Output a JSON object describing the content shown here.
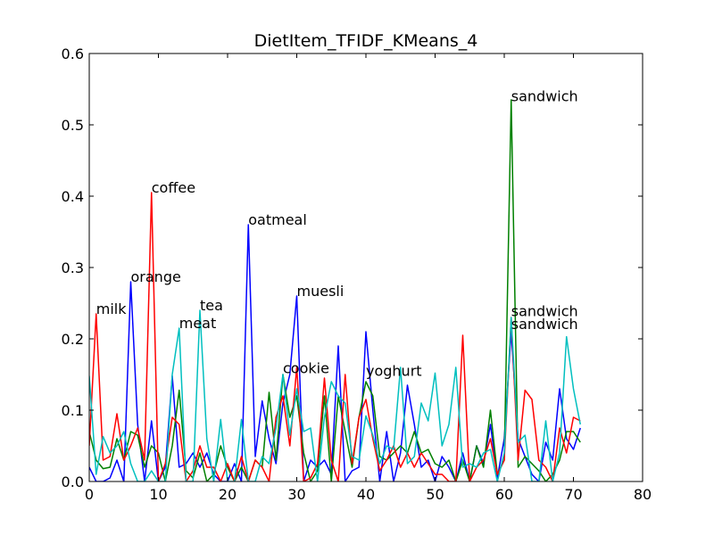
{
  "chart_data": {
    "type": "line",
    "title": "DietItem_TFIDF_KMeans_4",
    "xlabel": "",
    "ylabel": "",
    "xlim": [
      0,
      80
    ],
    "ylim": [
      0,
      0.6
    ],
    "xticks": [
      0,
      10,
      20,
      30,
      40,
      50,
      60,
      70,
      80
    ],
    "xtick_labels": [
      "0",
      "10",
      "20",
      "30",
      "40",
      "50",
      "60",
      "70",
      "80"
    ],
    "yticks": [
      0.0,
      0.1,
      0.2,
      0.3,
      0.4,
      0.5,
      0.6
    ],
    "ytick_labels": [
      "0.0",
      "0.1",
      "0.2",
      "0.3",
      "0.4",
      "0.5",
      "0.6"
    ],
    "grid": false,
    "x": [
      0,
      1,
      2,
      3,
      4,
      5,
      6,
      7,
      8,
      9,
      10,
      11,
      12,
      13,
      14,
      15,
      16,
      17,
      18,
      19,
      20,
      21,
      22,
      23,
      24,
      25,
      26,
      27,
      28,
      29,
      30,
      31,
      32,
      33,
      34,
      35,
      36,
      37,
      38,
      39,
      40,
      41,
      42,
      43,
      44,
      45,
      46,
      47,
      48,
      49,
      50,
      51,
      52,
      53,
      54,
      55,
      56,
      57,
      58,
      59,
      60,
      61,
      62,
      63,
      64,
      65,
      66,
      67,
      68,
      69,
      70,
      71
    ],
    "series": [
      {
        "color": "#0000ff",
        "values": [
          0.02,
          0.0,
          0.0,
          0.005,
          0.03,
          0.0,
          0.28,
          0.08,
          0.0,
          0.085,
          0.0,
          0.02,
          0.148,
          0.02,
          0.025,
          0.04,
          0.02,
          0.04,
          0.01,
          0.0,
          0.0,
          0.025,
          0.0,
          0.36,
          0.035,
          0.113,
          0.06,
          0.025,
          0.11,
          0.15,
          0.26,
          0.0,
          0.03,
          0.02,
          0.03,
          0.01,
          0.19,
          0.0,
          0.015,
          0.02,
          0.21,
          0.1,
          0.0,
          0.07,
          0.0,
          0.04,
          0.135,
          0.08,
          0.02,
          0.03,
          0.0,
          0.035,
          0.02,
          0.0,
          0.04,
          0.0,
          0.05,
          0.025,
          0.08,
          0.005,
          0.06,
          0.21,
          0.06,
          0.035,
          0.01,
          0.0,
          0.055,
          0.03,
          0.13,
          0.06,
          0.045,
          0.075
        ]
      },
      {
        "color": "#008000",
        "values": [
          0.07,
          0.03,
          0.018,
          0.02,
          0.06,
          0.03,
          0.07,
          0.065,
          0.02,
          0.05,
          0.04,
          0.0,
          0.05,
          0.128,
          0.015,
          0.005,
          0.04,
          0.0,
          0.01,
          0.05,
          0.02,
          0.0,
          0.02,
          0.0,
          0.03,
          0.02,
          0.125,
          0.03,
          0.15,
          0.09,
          0.12,
          0.04,
          0.0,
          0.015,
          0.12,
          0.0,
          0.12,
          0.07,
          0.02,
          0.09,
          0.14,
          0.12,
          0.035,
          0.03,
          0.04,
          0.05,
          0.04,
          0.07,
          0.04,
          0.045,
          0.025,
          0.02,
          0.03,
          0.0,
          0.03,
          0.0,
          0.05,
          0.02,
          0.1,
          0.01,
          0.03,
          0.535,
          0.02,
          0.035,
          0.025,
          0.015,
          0.0,
          0.01,
          0.03,
          0.07,
          0.07,
          0.055
        ]
      },
      {
        "color": "#ff0000",
        "values": [
          0.05,
          0.235,
          0.03,
          0.035,
          0.095,
          0.03,
          0.05,
          0.075,
          0.03,
          0.405,
          0.0,
          0.025,
          0.09,
          0.08,
          0.0,
          0.015,
          0.05,
          0.02,
          0.02,
          0.0,
          0.025,
          0.0,
          0.035,
          0.0,
          0.03,
          0.02,
          0.0,
          0.09,
          0.12,
          0.05,
          0.16,
          0.0,
          0.005,
          0.025,
          0.145,
          0.03,
          0.0,
          0.15,
          0.025,
          0.09,
          0.115,
          0.06,
          0.015,
          0.03,
          0.05,
          0.02,
          0.04,
          0.02,
          0.04,
          0.025,
          0.01,
          0.01,
          0.0,
          0.0,
          0.205,
          0.0,
          0.02,
          0.03,
          0.06,
          0.01,
          0.03,
          0.23,
          0.03,
          0.128,
          0.115,
          0.03,
          0.02,
          0.0,
          0.075,
          0.04,
          0.09,
          0.085
        ]
      },
      {
        "color": "#00bfbf",
        "values": [
          0.148,
          0.01,
          0.063,
          0.04,
          0.05,
          0.07,
          0.025,
          0.0,
          0.0,
          0.015,
          0.0,
          0.0,
          0.15,
          0.215,
          0.0,
          0.0,
          0.24,
          0.06,
          0.0,
          0.087,
          0.0,
          0.0,
          0.087,
          0.0,
          0.0,
          0.035,
          0.025,
          0.075,
          0.15,
          0.065,
          0.13,
          0.07,
          0.075,
          0.0,
          0.09,
          0.14,
          0.12,
          0.11,
          0.035,
          0.03,
          0.092,
          0.065,
          0.025,
          0.05,
          0.045,
          0.16,
          0.025,
          0.035,
          0.11,
          0.085,
          0.152,
          0.05,
          0.08,
          0.16,
          0.02,
          0.025,
          0.02,
          0.04,
          0.045,
          0.0,
          0.04,
          0.23,
          0.055,
          0.065,
          0.0,
          0.0,
          0.085,
          0.0,
          0.04,
          0.203,
          0.13,
          0.08
        ]
      }
    ],
    "annotations": [
      {
        "text": "milk",
        "x": 1,
        "y": 0.235
      },
      {
        "text": "orange",
        "x": 6,
        "y": 0.28
      },
      {
        "text": "coffee",
        "x": 9,
        "y": 0.405
      },
      {
        "text": "meat",
        "x": 13,
        "y": 0.215
      },
      {
        "text": "tea",
        "x": 16,
        "y": 0.24
      },
      {
        "text": "oatmeal",
        "x": 23,
        "y": 0.36
      },
      {
        "text": "cookie",
        "x": 28,
        "y": 0.152
      },
      {
        "text": "muesli",
        "x": 30,
        "y": 0.26
      },
      {
        "text": "yoghurt",
        "x": 40,
        "y": 0.148
      },
      {
        "text": "sandwich",
        "x": 61,
        "y": 0.533
      },
      {
        "text": "sandwich",
        "x": 61,
        "y": 0.232
      },
      {
        "text": "sandwich",
        "x": 61,
        "y": 0.214
      }
    ]
  }
}
